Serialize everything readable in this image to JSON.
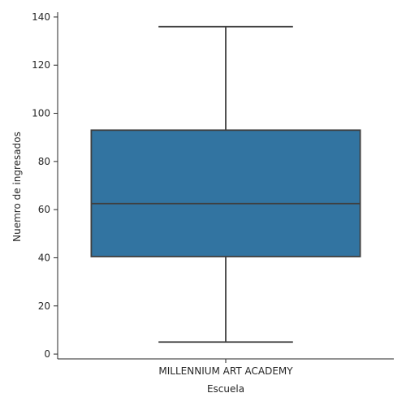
{
  "chart_data": {
    "type": "box",
    "title": "",
    "xlabel": "Escuela",
    "ylabel": "Nuemro de ingresados",
    "categories": [
      "MILLENNIUM ART ACADEMY"
    ],
    "boxes": [
      {
        "category": "MILLENNIUM ART ACADEMY",
        "min": 5,
        "q1": 40.5,
        "median": 62.5,
        "q3": 93,
        "max": 136
      }
    ],
    "ylim": [
      -2,
      142
    ],
    "yticks": [
      0,
      20,
      40,
      60,
      80,
      100,
      120,
      140
    ],
    "grid": false,
    "legend": "none",
    "colors": {
      "box": "#3274a1",
      "line": "#3f3f3f",
      "axis": "#262626"
    }
  }
}
